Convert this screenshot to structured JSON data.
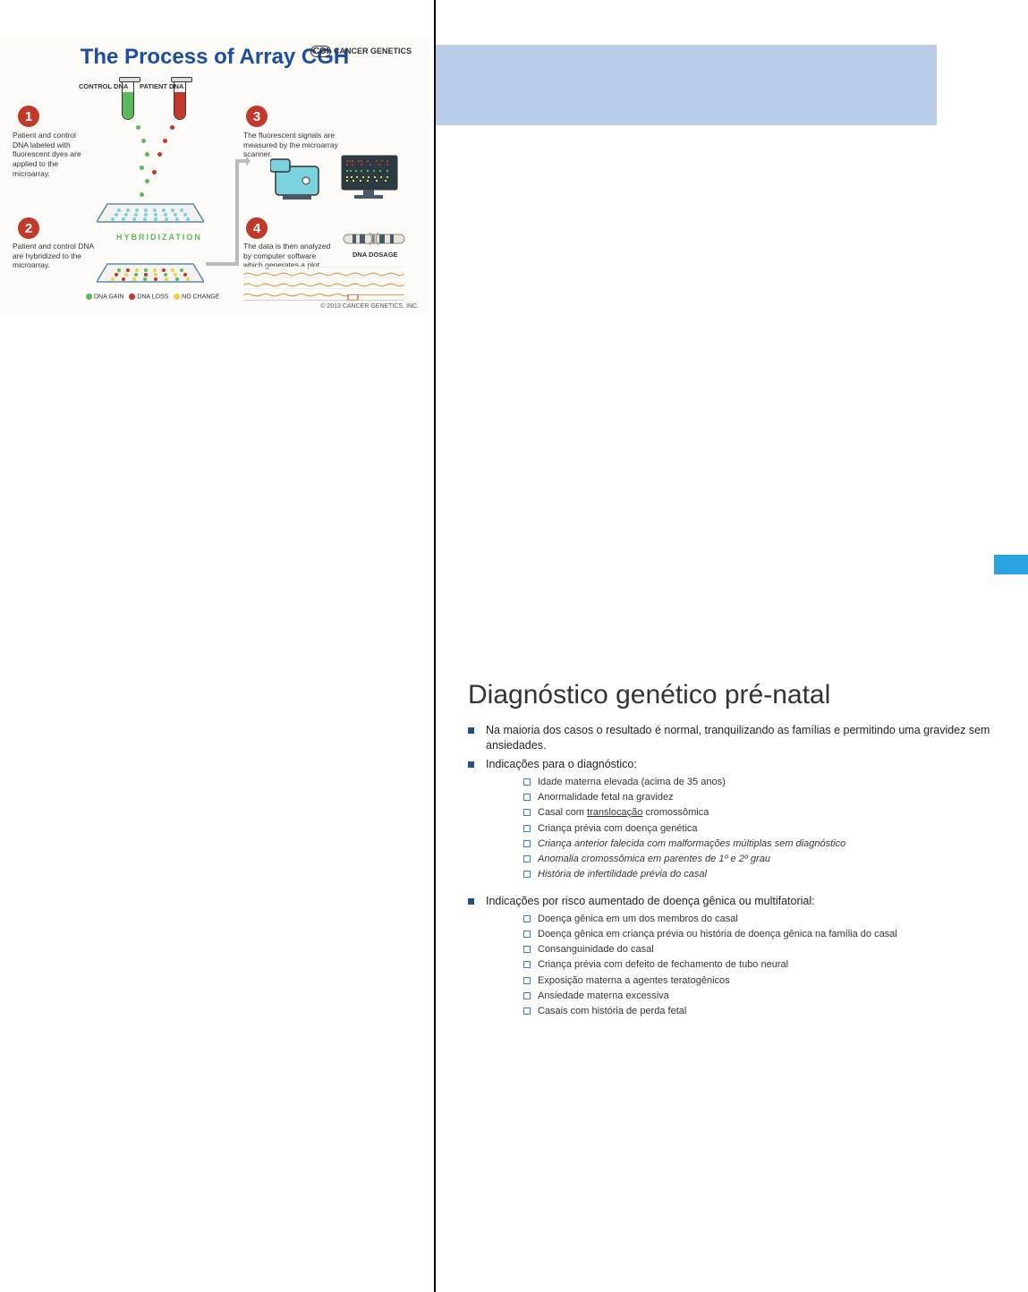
{
  "colors": {
    "cgh_title": "#1b4ea0",
    "badge": "#c0392b",
    "green": "#5cb85c",
    "red": "#c0392b",
    "yellow": "#e8d44a",
    "cyan": "#79d2de",
    "orange": "#e67e22",
    "grid": "#5b8aa6",
    "plate_fill": "#f4f2ee",
    "blue_bar": "#b9cde6",
    "side_tab": "#2aa3e0",
    "bullet": "#274e8c",
    "sub_bullet": "#3a7bd5",
    "monitor_shade": "#4a5a66",
    "plot_line": "#d98c3a"
  },
  "cgh": {
    "title": "The Process of Array CGH",
    "logo_prefix": "CGI",
    "logo_suffix": "CANCER GENETICS",
    "copyright": "© 2013 CANCER GENETICS, INC.",
    "labels": {
      "control_dna": "CONTROL DNA",
      "patient_dna": "PATIENT DNA",
      "hybridization": "HYBRIDIZATION",
      "dna_gain": "DNA GAIN",
      "dna_loss": "DNA LOSS",
      "no_change": "NO CHANGE",
      "dna_dosage": "DNA DOSAGE"
    },
    "steps": {
      "s1": {
        "num": "1",
        "text": "Patient and control DNA labeled with fluorescent dyes are applied to the microarray."
      },
      "s2": {
        "num": "2",
        "text": "Patient and control DNA are hybridized to the microarray."
      },
      "s3": {
        "num": "3",
        "text": "The fluorescent signals are measured by the microarray scanner."
      },
      "s4": {
        "num": "4",
        "text": "The data is then analyzed by computer software which generates a plot."
      }
    }
  },
  "slide": {
    "title": "Diagnóstico genético pré-natal",
    "b1": "Na maioria dos casos o resultado é normal, tranquilizando as famílias e permitindo uma gravidez sem ansiedades.",
    "b2": "Indicações para o diagnóstico:",
    "b2_items": {
      "i0": "Idade materna elevada (acima de 35 anos)",
      "i1": "Anormalidade fetal na gravidez",
      "i2_pre": "Casal com ",
      "i2_u": "translocação",
      "i2_post": " cromossômica",
      "i3": "Criança prévia com doença genética",
      "i4": "Criança anterior falecida com malformações múltiplas sem diagnóstico",
      "i5": "Anomalia cromossômica em parentes de 1º e 2º grau",
      "i6": "História de infertilidade prévia do casal"
    },
    "b3": "Indicações por risco aumentado de doença gênica ou multifatorial:",
    "b3_items": {
      "i0": "Doença gênica em um dos membros do casal",
      "i1": "Doença gênica em criança prévia ou história de doença gênica na família do casal",
      "i2": "Consanguinidade do casal",
      "i3": "Criança prévia com defeito de fechamento de tubo neural",
      "i4": "Exposição materna a agentes teratogênicos",
      "i5": "Ansiedade materna excessiva",
      "i6": "Casais com história de perda fetal"
    }
  }
}
